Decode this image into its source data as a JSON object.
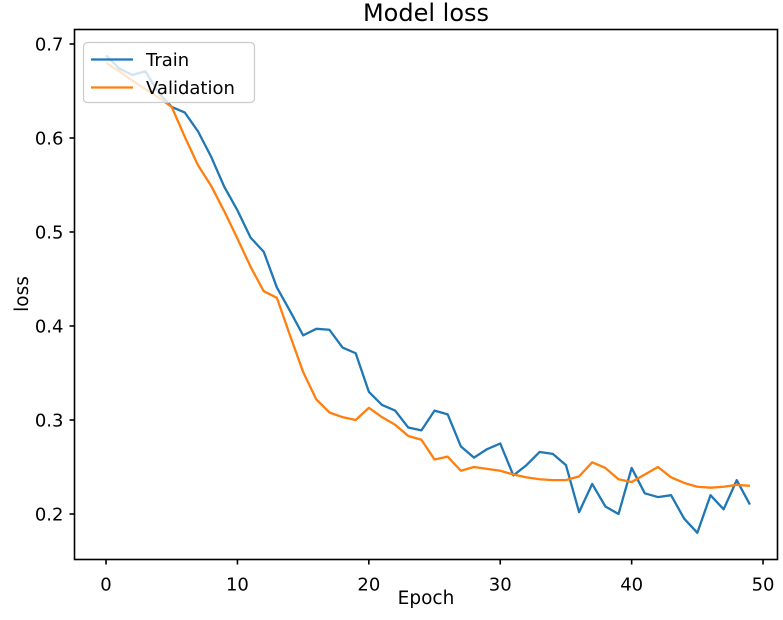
{
  "figure": {
    "background": "#ffffff",
    "spine_color": "#000000"
  },
  "chart_data": {
    "type": "line",
    "title": "Model loss",
    "xlabel": "Epoch",
    "ylabel": "loss",
    "x": [
      0,
      1,
      2,
      3,
      4,
      5,
      6,
      7,
      8,
      9,
      10,
      11,
      12,
      13,
      14,
      15,
      16,
      17,
      18,
      19,
      20,
      21,
      22,
      23,
      24,
      25,
      26,
      27,
      28,
      29,
      30,
      31,
      32,
      33,
      34,
      35,
      36,
      37,
      38,
      39,
      40,
      41,
      42,
      43,
      44,
      45,
      46,
      47,
      48,
      49
    ],
    "series": [
      {
        "name": "Train",
        "color": "#1f77b4",
        "values": [
          0.688,
          0.674,
          0.667,
          0.671,
          0.648,
          0.633,
          0.627,
          0.607,
          0.58,
          0.548,
          0.523,
          0.494,
          0.479,
          0.441,
          0.416,
          0.39,
          0.397,
          0.396,
          0.377,
          0.371,
          0.33,
          0.316,
          0.31,
          0.292,
          0.289,
          0.31,
          0.306,
          0.272,
          0.26,
          0.269,
          0.275,
          0.241,
          0.252,
          0.266,
          0.264,
          0.252,
          0.202,
          0.232,
          0.208,
          0.2,
          0.249,
          0.222,
          0.218,
          0.22,
          0.195,
          0.18,
          0.22,
          0.205,
          0.236,
          0.21
        ]
      },
      {
        "name": "Validation",
        "color": "#ff7f0e",
        "values": [
          0.68,
          0.671,
          0.661,
          0.652,
          0.643,
          0.633,
          0.601,
          0.571,
          0.549,
          0.522,
          0.493,
          0.463,
          0.437,
          0.43,
          0.39,
          0.351,
          0.322,
          0.308,
          0.303,
          0.3,
          0.313,
          0.303,
          0.295,
          0.283,
          0.279,
          0.258,
          0.261,
          0.246,
          0.25,
          0.248,
          0.246,
          0.242,
          0.239,
          0.237,
          0.236,
          0.236,
          0.24,
          0.255,
          0.249,
          0.237,
          0.234,
          0.242,
          0.25,
          0.239,
          0.233,
          0.229,
          0.228,
          0.229,
          0.231,
          0.23
        ]
      }
    ],
    "xticks": [
      0,
      10,
      20,
      30,
      40,
      50
    ],
    "yticks": [
      0.7,
      0.6,
      0.5,
      0.4,
      0.3,
      0.2
    ],
    "xlim": [
      -2.4,
      51.1
    ],
    "ylim": [
      0.1516,
      0.7154
    ],
    "grid": false,
    "legend": {
      "position": "upper left"
    }
  }
}
